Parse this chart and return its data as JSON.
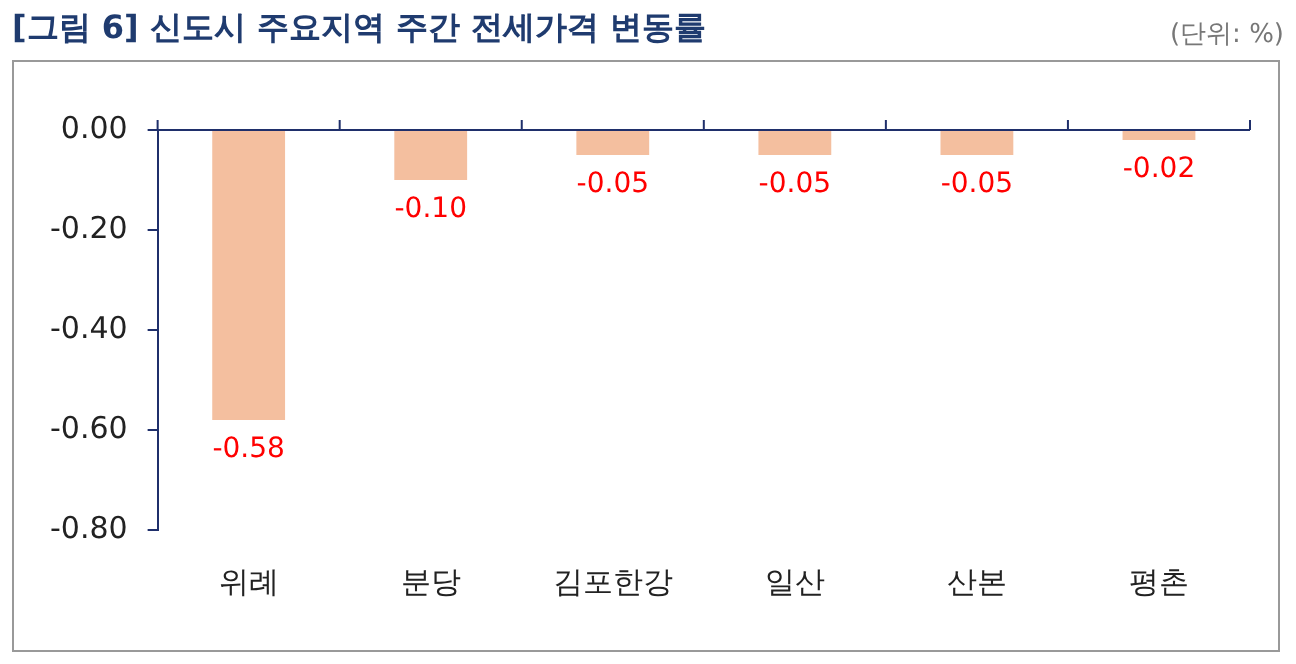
{
  "chart_data": {
    "type": "bar",
    "title": "[그림 6] 신도시 주요지역 주간 전세가격 변동률",
    "annotations": [
      "(단위: %)"
    ],
    "categories": [
      "위례",
      "분당",
      "김포한강",
      "일산",
      "산본",
      "평촌"
    ],
    "values": [
      -0.58,
      -0.1,
      -0.05,
      -0.05,
      -0.05,
      -0.02
    ],
    "color": "#f4bf9f",
    "ylim": [
      -0.8,
      0
    ],
    "yticks": [
      {
        "value": 0,
        "label": "0.00"
      },
      {
        "value": -0.2,
        "label": "-0.20"
      },
      {
        "value": -0.4,
        "label": "-0.40"
      },
      {
        "value": -0.6,
        "label": "-0.60"
      },
      {
        "value": -0.8,
        "label": "-0.80"
      }
    ],
    "grid": false,
    "legend": false,
    "value_labels": [
      "-0.58",
      "-0.10",
      "-0.05",
      "-0.05",
      "-0.05",
      "-0.02"
    ]
  }
}
